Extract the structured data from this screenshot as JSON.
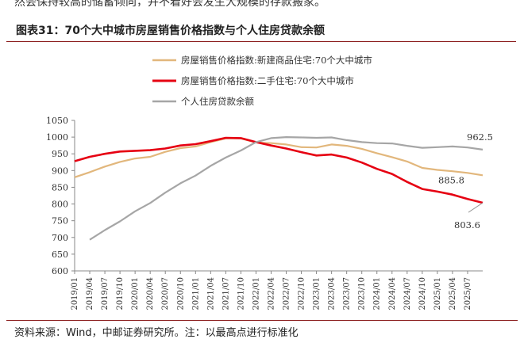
{
  "page": {
    "top_cut_text": "然会保持较高的储蓄倾向，并不着好会发生大规模的存款搬家。",
    "figure_title": "图表31：70个大中城市房屋销售价格指数与个人住房贷款余额",
    "source": "资料来源：Wind，中邮证券研究所。注：以最高点进行标准化"
  },
  "chart_data": {
    "type": "line",
    "title": "",
    "xlabel": "",
    "ylabel": "",
    "ylim": [
      600,
      1050
    ],
    "yticks": [
      600,
      650,
      700,
      750,
      800,
      850,
      900,
      950,
      1000,
      1050
    ],
    "grid": false,
    "legend_position": "top-center",
    "x": [
      "2019/01",
      "2019/04",
      "2019/07",
      "2019/10",
      "2020/01",
      "2020/04",
      "2020/07",
      "2020/10",
      "2021/01",
      "2021/04",
      "2021/07",
      "2021/10",
      "2022/01",
      "2022/04",
      "2022/07",
      "2022/10",
      "2023/01",
      "2023/04",
      "2023/07",
      "2023/10",
      "2024/01",
      "2024/04",
      "2024/07",
      "2024/10",
      "2025/01",
      "2025/04",
      "2025/07",
      "2025/09"
    ],
    "x_ticks": [
      "2019/01",
      "2019/04",
      "2019/07",
      "2019/10",
      "2020/01",
      "2020/04",
      "2020/07",
      "2020/10",
      "2021/01",
      "2021/04",
      "2021/07",
      "2021/10",
      "2022/01",
      "2022/04",
      "2022/07",
      "2022/10",
      "2023/01",
      "2023/04",
      "2023/07",
      "2023/10",
      "2024/01",
      "2024/04",
      "2024/07",
      "2024/10",
      "2025/01",
      "2025/04",
      "2025/07"
    ],
    "series": [
      {
        "name": "房屋销售价格指数:新建商品住宅:70个大中城市",
        "color": "#e2b77c",
        "values": [
          880,
          895,
          912,
          926,
          936,
          941,
          956,
          967,
          972,
          985,
          996,
          996,
          984,
          982,
          978,
          970,
          969,
          978,
          974,
          965,
          952,
          940,
          927,
          908,
          902,
          898,
          893,
          885.8
        ],
        "end_label": "885.8"
      },
      {
        "name": "房屋销售价格指数:二手住宅:70个大中城市",
        "color": "#e60012",
        "values": [
          928,
          941,
          950,
          957,
          959,
          961,
          966,
          975,
          979,
          988,
          998,
          997,
          985,
          975,
          966,
          955,
          945,
          948,
          939,
          924,
          905,
          890,
          866,
          845,
          837,
          828,
          815,
          803.6
        ],
        "end_label": "803.6"
      },
      {
        "name": "个人住房贷款余额",
        "color": "#a6a6a6",
        "start_index": 1,
        "values": [
          null,
          693,
          722,
          748,
          778,
          803,
          834,
          862,
          885,
          914,
          939,
          960,
          985,
          997,
          1000,
          999,
          998,
          999,
          991,
          985,
          982,
          981,
          974,
          968,
          970,
          972,
          969,
          962.5
        ],
        "end_label": "962.5"
      }
    ]
  }
}
